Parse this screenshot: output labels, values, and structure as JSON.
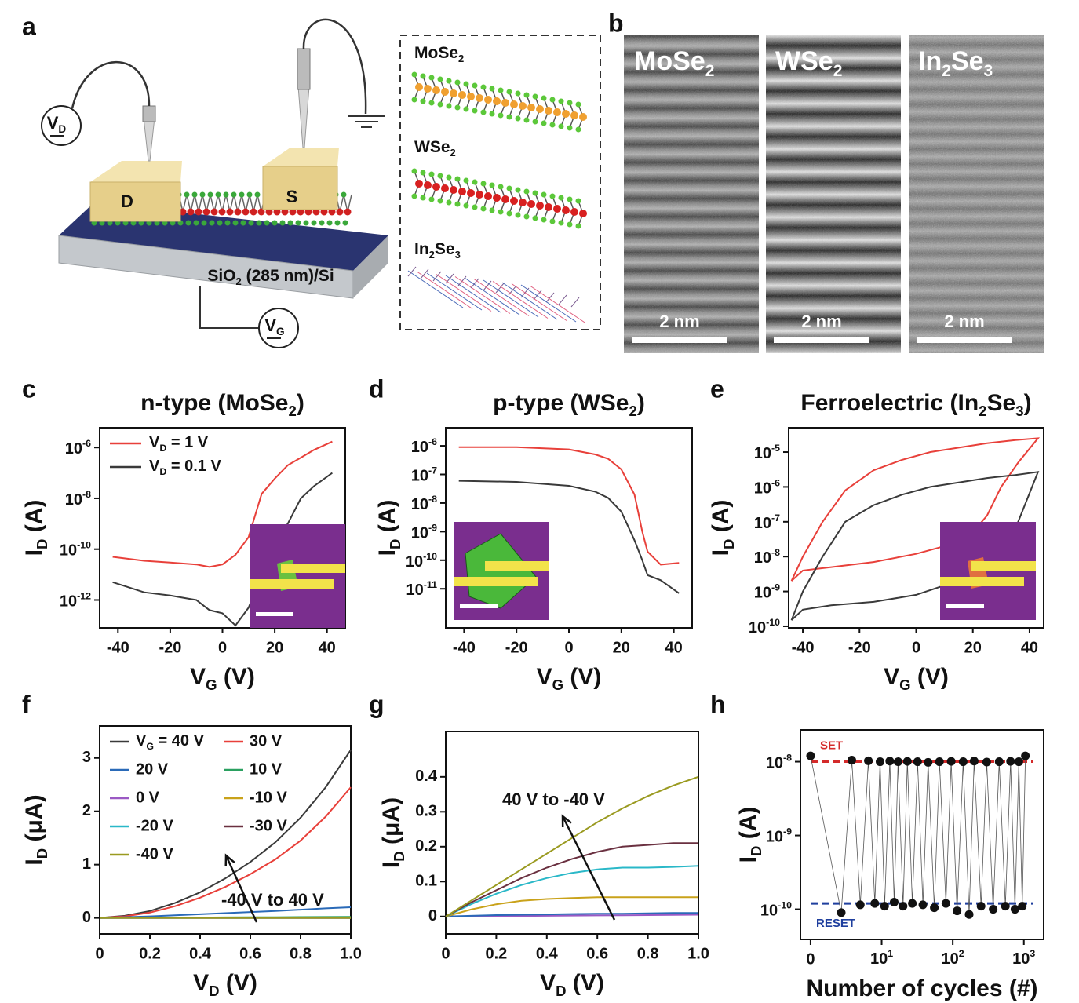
{
  "diagram": {
    "panel": "a",
    "drain": "D",
    "source": "S",
    "substrate": [
      "SiO",
      "2",
      " (285 nm)/Si"
    ],
    "drain_voltage": [
      "V",
      "D"
    ],
    "gate_voltage": [
      "V",
      "G"
    ],
    "materials": [
      [
        "MoSe",
        "2"
      ],
      [
        "WSe",
        "2"
      ],
      [
        "In",
        "2",
        "Se",
        "3"
      ]
    ]
  },
  "micrographs": {
    "panel": "b",
    "images": [
      {
        "label": [
          "MoSe",
          "2"
        ],
        "scale": "2 nm"
      },
      {
        "label": [
          "WSe",
          "2"
        ],
        "scale": "2 nm"
      },
      {
        "label": [
          "In",
          "2",
          "Se",
          "3"
        ],
        "scale": "2 nm"
      }
    ]
  },
  "chart_data": [
    {
      "type": "line",
      "panel": "c",
      "title": [
        "n-type (MoSe",
        "2",
        ")"
      ],
      "xlabel": [
        "V",
        "G",
        " (V)"
      ],
      "ylabel": [
        "I",
        "D",
        " (A)"
      ],
      "xlim": [
        -47,
        47
      ],
      "xticks": [
        -40,
        -20,
        0,
        20,
        40
      ],
      "yscale": "log",
      "ylim": [
        8e-14,
        6e-06
      ],
      "yticks": [
        {
          "value": 1e-06,
          "label": [
            "10",
            "-6"
          ]
        },
        {
          "value": 1e-08,
          "label": [
            "10",
            "-8"
          ]
        },
        {
          "value": 1e-10,
          "label": [
            "10",
            "-10"
          ]
        },
        {
          "value": 1e-12,
          "label": [
            "10",
            "-12"
          ]
        }
      ],
      "legend": "upper left",
      "x": [
        -42,
        -30,
        -20,
        -10,
        -5,
        0,
        5,
        10,
        15,
        20,
        25,
        30,
        35,
        42
      ],
      "series": [
        {
          "name": [
            "V",
            "D",
            " = 1 V"
          ],
          "color": "#e8403a",
          "values": [
            5e-11,
            3.5e-11,
            3e-11,
            2.5e-11,
            2e-11,
            2.5e-11,
            6e-11,
            3e-10,
            1.5e-08,
            6e-08,
            2e-07,
            4e-07,
            8e-07,
            1.7e-06
          ]
        },
        {
          "name": [
            "V",
            "D",
            " = 0.1 V"
          ],
          "color": "#3a3a3a",
          "values": [
            5e-12,
            2e-12,
            1.5e-12,
            1e-12,
            4e-13,
            3e-13,
            1e-13,
            5e-13,
            1e-11,
            2e-10,
            1e-09,
            1e-08,
            3e-08,
            1e-07
          ]
        }
      ]
    },
    {
      "type": "line",
      "panel": "d",
      "title": [
        "p-type (WSe",
        "2",
        ")"
      ],
      "xlabel": [
        "V",
        "G",
        " (V)"
      ],
      "ylabel": [
        "I",
        "D",
        " (A)"
      ],
      "xlim": [
        -47,
        47
      ],
      "xticks": [
        -40,
        -20,
        0,
        20,
        40
      ],
      "yscale": "log",
      "ylim": [
        4.3e-13,
        4.3e-06
      ],
      "yticks": [
        {
          "value": 1e-06,
          "label": [
            "10",
            "-6"
          ]
        },
        {
          "value": 1e-07,
          "label": [
            "10",
            "-7"
          ]
        },
        {
          "value": 1e-08,
          "label": [
            "10",
            "-8"
          ]
        },
        {
          "value": 1e-09,
          "label": [
            "10",
            "-9"
          ]
        },
        {
          "value": 1e-10,
          "label": [
            "10",
            "-10"
          ]
        },
        {
          "value": 1e-11,
          "label": [
            "10",
            "-11"
          ]
        }
      ],
      "x": [
        -42,
        -20,
        0,
        10,
        15,
        20,
        25,
        28,
        30,
        35,
        42
      ],
      "series": [
        {
          "color": "#e8403a",
          "values": [
            9e-07,
            9e-07,
            7.5e-07,
            5e-07,
            3.5e-07,
            1.5e-07,
            2e-08,
            1e-09,
            2e-10,
            7e-11,
            8e-11
          ]
        },
        {
          "color": "#3a3a3a",
          "values": [
            6e-08,
            5.5e-08,
            4e-08,
            2.5e-08,
            1.5e-08,
            5e-09,
            5e-10,
            1e-10,
            3e-11,
            2e-11,
            7e-12
          ]
        }
      ]
    },
    {
      "type": "line",
      "panel": "e",
      "title": [
        "Ferroelectric (In",
        "2",
        "Se",
        "3",
        ")"
      ],
      "xlabel": [
        "V",
        "G",
        " (V)"
      ],
      "ylabel": [
        "I",
        "D",
        " (A)"
      ],
      "xlim": [
        -45,
        45
      ],
      "xticks": [
        -40,
        -20,
        0,
        20,
        40
      ],
      "yscale": "log",
      "ylim": [
        9e-11,
        5e-05
      ],
      "yticks": [
        {
          "value": 1e-05,
          "label": [
            "10",
            "-5"
          ]
        },
        {
          "value": 1e-06,
          "label": [
            "10",
            "-6"
          ]
        },
        {
          "value": 1e-07,
          "label": [
            "10",
            "-7"
          ]
        },
        {
          "value": 1e-08,
          "label": [
            "10",
            "-8"
          ]
        },
        {
          "value": 1e-09,
          "label": [
            "10",
            "-9"
          ]
        },
        {
          "value": 1e-10,
          "label": [
            "10",
            "-10"
          ]
        }
      ],
      "series": [
        {
          "color": "#e8403a",
          "x": [
            -44,
            -40,
            -30,
            -15,
            0,
            10,
            20,
            25,
            30,
            36,
            43,
            35,
            25,
            5,
            -5,
            -15,
            -25,
            -33,
            -40,
            -44
          ],
          "values": [
            2e-09,
            4e-09,
            5e-09,
            7e-09,
            1.2e-08,
            2e-08,
            5e-08,
            1.5e-07,
            1e-06,
            5e-06,
            2.5e-05,
            2.2e-05,
            1.8e-05,
            1e-05,
            6e-06,
            3e-06,
            8e-07,
            1e-07,
            1e-08,
            2e-09
          ]
        },
        {
          "color": "#3a3a3a",
          "x": [
            -44,
            -40,
            -30,
            -15,
            0,
            10,
            20,
            25,
            30,
            36,
            43,
            35,
            25,
            5,
            -5,
            -15,
            -25,
            -33,
            -40,
            -44
          ],
          "values": [
            1.5e-10,
            3e-10,
            4e-10,
            5e-10,
            8e-10,
            1.5e-09,
            5e-09,
            1e-08,
            2e-08,
            1e-07,
            2.7e-06,
            2.2e-06,
            1.8e-06,
            1e-06,
            6e-07,
            3e-07,
            1e-07,
            1e-08,
            1e-09,
            1.5e-10
          ]
        }
      ]
    },
    {
      "type": "line",
      "panel": "f",
      "xlabel": [
        "V",
        "D",
        " (V)"
      ],
      "ylabel": [
        "I",
        "D",
        " (μA)"
      ],
      "xlim": [
        0,
        1
      ],
      "xticks": [
        0,
        0.2,
        0.4,
        0.6,
        0.8,
        {
          "value": 1,
          "label": "1.0"
        }
      ],
      "ylim": [
        -0.3,
        3.6
      ],
      "yticks": [
        0,
        1,
        2,
        3
      ],
      "legend": "upper left",
      "legend_columns": 2,
      "annotations": [
        {
          "text": "-40 V to 40 V"
        }
      ],
      "x": [
        0,
        0.1,
        0.2,
        0.3,
        0.4,
        0.5,
        0.6,
        0.7,
        0.8,
        0.9,
        1
      ],
      "series": [
        {
          "name": [
            "V",
            "G",
            " = 40 V"
          ],
          "color": "#3a3a3a",
          "values": [
            0,
            0.04,
            0.13,
            0.28,
            0.48,
            0.74,
            1.05,
            1.42,
            1.88,
            2.45,
            3.15
          ]
        },
        {
          "name": "30 V",
          "color": "#e8403a",
          "values": [
            0,
            0.03,
            0.1,
            0.22,
            0.38,
            0.58,
            0.82,
            1.1,
            1.45,
            1.9,
            2.45
          ]
        },
        {
          "name": "20 V",
          "color": "#2a6ab8",
          "values": [
            0,
            0.015,
            0.03,
            0.05,
            0.07,
            0.09,
            0.11,
            0.13,
            0.155,
            0.18,
            0.2
          ]
        },
        {
          "name": "10 V",
          "color": "#2aa060",
          "values": [
            0,
            0.002,
            0.004,
            0.006,
            0.008,
            0.01,
            0.012,
            0.014,
            0.016,
            0.018,
            0.02
          ]
        },
        {
          "name": "0 V",
          "color": "#9b59c4",
          "values": [
            0,
            0,
            0,
            0,
            0,
            0,
            0,
            0,
            0,
            0,
            0
          ]
        },
        {
          "name": "-10 V",
          "color": "#c9a21a",
          "values": [
            0,
            0,
            0,
            0,
            0,
            0,
            0,
            0,
            0,
            0,
            0
          ]
        },
        {
          "name": "-20 V",
          "color": "#2ab8c8",
          "values": [
            0,
            0,
            0,
            0,
            0,
            0,
            0,
            0,
            0,
            0,
            0
          ]
        },
        {
          "name": "-30 V",
          "color": "#6a3040",
          "values": [
            0,
            0,
            0,
            0,
            0,
            0,
            0,
            0,
            0,
            0,
            0
          ]
        },
        {
          "name": "-40 V",
          "color": "#9a9a20",
          "values": [
            0,
            0,
            0,
            0,
            0,
            0,
            0,
            0,
            0,
            0,
            0
          ]
        }
      ]
    },
    {
      "type": "line",
      "panel": "g",
      "xlabel": [
        "V",
        "D",
        " (V)"
      ],
      "ylabel": [
        "I",
        "D",
        " (μA)"
      ],
      "xlim": [
        0,
        1
      ],
      "xticks": [
        0,
        0.2,
        0.4,
        0.6,
        0.8,
        {
          "value": 1,
          "label": "1.0"
        }
      ],
      "ylim": [
        -0.05,
        0.53
      ],
      "yticks": [
        0,
        0.1,
        0.2,
        0.3,
        0.4
      ],
      "annotations": [
        {
          "text": "40 V to -40 V"
        }
      ],
      "x": [
        0,
        0.1,
        0.2,
        0.3,
        0.4,
        0.5,
        0.6,
        0.7,
        0.8,
        0.9,
        1
      ],
      "series": [
        {
          "color": "#9b59c4",
          "values": [
            0,
            0.0005,
            0.001,
            0.0015,
            0.002,
            0.0025,
            0.003,
            0.0035,
            0.004,
            0.0045,
            0.005
          ]
        },
        {
          "color": "#2a6ab8",
          "values": [
            0,
            0.002,
            0.004,
            0.005,
            0.006,
            0.007,
            0.008,
            0.008,
            0.009,
            0.01,
            0.01
          ]
        },
        {
          "color": "#c9a21a",
          "values": [
            0,
            0.02,
            0.035,
            0.045,
            0.05,
            0.053,
            0.055,
            0.055,
            0.055,
            0.055,
            0.055
          ]
        },
        {
          "color": "#2ab8c8",
          "values": [
            0,
            0.035,
            0.065,
            0.09,
            0.11,
            0.125,
            0.135,
            0.14,
            0.14,
            0.142,
            0.145
          ]
        },
        {
          "color": "#6a3040",
          "values": [
            0,
            0.04,
            0.075,
            0.11,
            0.14,
            0.165,
            0.185,
            0.2,
            0.205,
            0.21,
            0.21
          ]
        },
        {
          "color": "#9a9a20",
          "values": [
            0,
            0.045,
            0.09,
            0.135,
            0.18,
            0.225,
            0.27,
            0.31,
            0.345,
            0.375,
            0.4
          ]
        }
      ]
    },
    {
      "type": "line",
      "panel": "h",
      "marker": "circle",
      "xlabel": "Number of cycles (#)",
      "ylabel": [
        "I",
        "D",
        " (A)"
      ],
      "xscale": "log",
      "xlim": [
        0.72,
        1900
      ],
      "xticks": [
        {
          "value": 1,
          "label": "0"
        },
        {
          "value": 10,
          "label": [
            "10",
            "1"
          ]
        },
        {
          "value": 100,
          "label": [
            "10",
            "2"
          ]
        },
        {
          "value": 1000,
          "label": [
            "10",
            "3"
          ]
        }
      ],
      "yscale": "log",
      "ylim": [
        3.9e-11,
        2.7e-08
      ],
      "yticks": [
        {
          "value": 1e-08,
          "label": [
            "10",
            "-8"
          ]
        },
        {
          "value": 1e-09,
          "label": [
            "10",
            "-9"
          ]
        },
        {
          "value": 1e-10,
          "label": [
            "10",
            "-10"
          ]
        }
      ],
      "reference_lines": [
        {
          "label": "SET",
          "value": 1e-08,
          "color": "#d42a2a"
        },
        {
          "label": "RESET",
          "value": 1.2e-10,
          "color": "#1f3f9e"
        }
      ],
      "x": [
        1,
        2.7,
        3.8,
        5,
        6.5,
        8,
        9.5,
        11,
        13,
        15,
        17,
        20,
        23,
        27,
        32,
        38,
        45,
        55,
        65,
        80,
        95,
        115,
        140,
        170,
        200,
        250,
        300,
        370,
        450,
        550,
        650,
        750,
        850,
        950,
        1050
      ],
      "series": [
        {
          "color": "#555555",
          "values": [
            1.2e-08,
            9e-11,
            1.05e-08,
            1.15e-10,
            1.03e-08,
            1.2e-10,
            1e-08,
            1.1e-10,
            1.02e-08,
            1.25e-10,
            1e-08,
            1.1e-10,
            1.01e-08,
            1.2e-10,
            1e-08,
            1.15e-10,
            9.8e-09,
            1.05e-10,
            1e-08,
            1.2e-10,
            1.01e-08,
            9.5e-11,
            1e-08,
            8.5e-11,
            1.02e-08,
            1.1e-10,
            9.9e-09,
            1e-10,
            1e-08,
            1.1e-10,
            1.01e-08,
            1e-10,
            1e-08,
            1.1e-10,
            1.2e-08
          ]
        }
      ]
    }
  ]
}
